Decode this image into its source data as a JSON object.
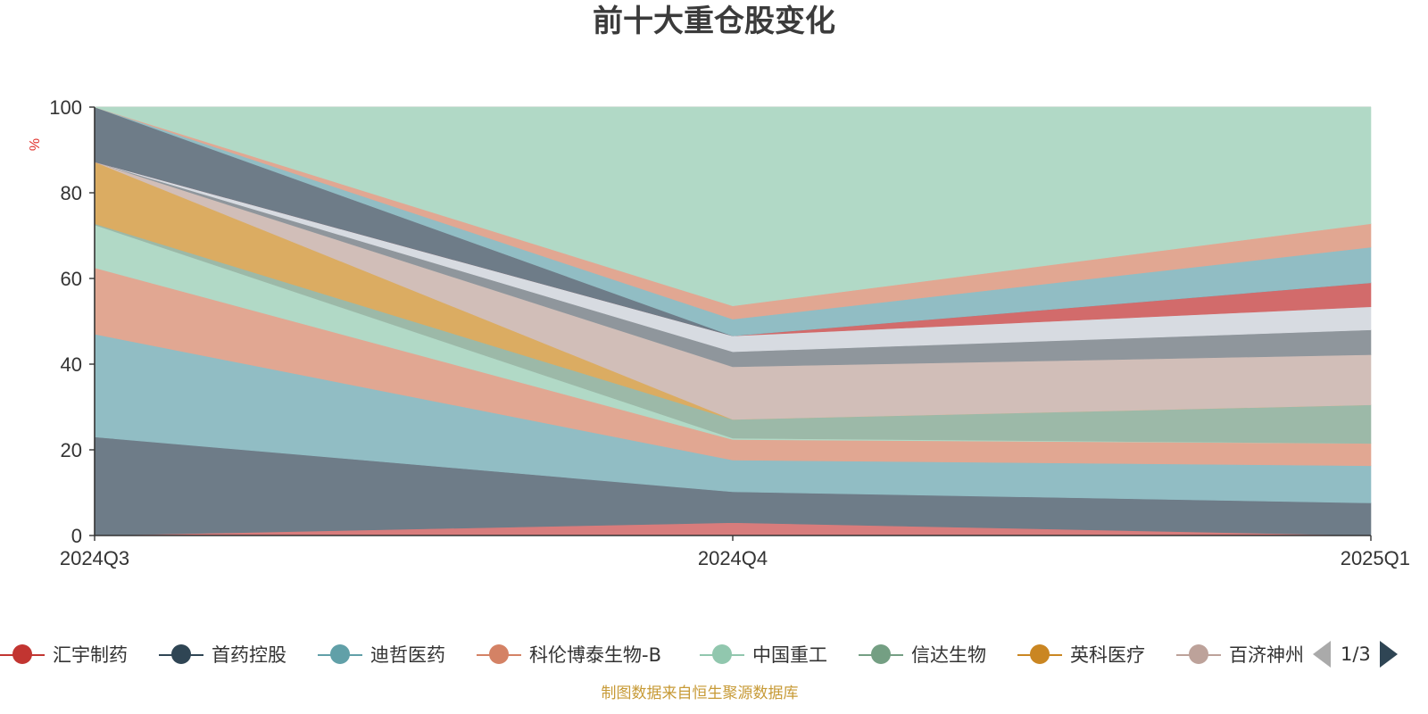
{
  "chart_data": {
    "type": "area",
    "stacked": true,
    "title": "前十大重仓股变化",
    "ylabel": "%",
    "ylim": [
      0,
      100
    ],
    "yticks": [
      "0",
      "20",
      "40",
      "60",
      "80",
      "100"
    ],
    "categories": [
      "2024Q3",
      "2024Q4",
      "2025Q1"
    ],
    "series": [
      {
        "name": "汇宇制药",
        "color": "#c23531",
        "area_color": "#d87c7c",
        "values": [
          0,
          3.0,
          0
        ]
      },
      {
        "name": "首药控股",
        "color": "#2f4554",
        "area_color": "#6e7c88",
        "values": [
          23.0,
          7.2,
          7.6
        ]
      },
      {
        "name": "迪哲医药",
        "color": "#61a0a8",
        "area_color": "#91bdc4",
        "values": [
          24.0,
          7.4,
          8.7
        ]
      },
      {
        "name": "科伦博泰生物-B",
        "color": "#d48265",
        "area_color": "#e1a792",
        "values": [
          15.5,
          4.8,
          5.2
        ]
      },
      {
        "name": "中国重工",
        "color": "#91c7ae",
        "area_color": "#b1d9c6",
        "values": [
          10.0,
          0.3,
          0
        ]
      },
      {
        "name": "信达生物",
        "color": "#749f83",
        "area_color": "#9cb9a8",
        "values": [
          0.3,
          4.4,
          9.0
        ]
      },
      {
        "name": "英科医疗",
        "color": "#ca8622",
        "area_color": "#dbac62",
        "values": [
          14.4,
          0,
          0
        ]
      },
      {
        "name": "百济神州",
        "color": "#bda29a",
        "area_color": "#d1beb8",
        "values": [
          0,
          12.3,
          11.7
        ]
      },
      {
        "name": "",
        "color": "#6e7074",
        "area_color": "#8f969c",
        "values": [
          0,
          3.5,
          5.8
        ]
      },
      {
        "name": "",
        "color": "#c4ccd3",
        "area_color": "#d7dbe1",
        "values": [
          0,
          3.7,
          5.4
        ]
      },
      {
        "name": "",
        "color": "#c23531",
        "area_color": "#d26b6b",
        "values": [
          0,
          0,
          5.6
        ]
      },
      {
        "name": "",
        "color": "#2f4554",
        "area_color": "#6e7c88",
        "values": [
          12.8,
          0,
          0
        ]
      },
      {
        "name": "",
        "color": "#61a0a8",
        "area_color": "#91bdc4",
        "values": [
          0,
          3.9,
          8.3
        ]
      },
      {
        "name": "",
        "color": "#d48265",
        "area_color": "#e1a792",
        "values": [
          0,
          3.1,
          5.5
        ]
      },
      {
        "name": "",
        "color": "#91c7ae",
        "area_color": "#b1d9c6",
        "values": [
          0,
          46.4,
          27.2
        ]
      }
    ]
  },
  "legend": {
    "items": [
      {
        "label": "汇宇制药",
        "color": "#c23531"
      },
      {
        "label": "首药控股",
        "color": "#2f4554"
      },
      {
        "label": "迪哲医药",
        "color": "#61a0a8"
      },
      {
        "label": "科伦博泰生物-B",
        "color": "#d48265"
      },
      {
        "label": "中国重工",
        "color": "#91c7ae"
      },
      {
        "label": "信达生物",
        "color": "#749f83"
      },
      {
        "label": "英科医疗",
        "color": "#ca8622"
      },
      {
        "label": "百济神州",
        "color": "#bda29a"
      }
    ],
    "page": "1/3"
  },
  "footer": "制图数据来自恒生聚源数据库"
}
